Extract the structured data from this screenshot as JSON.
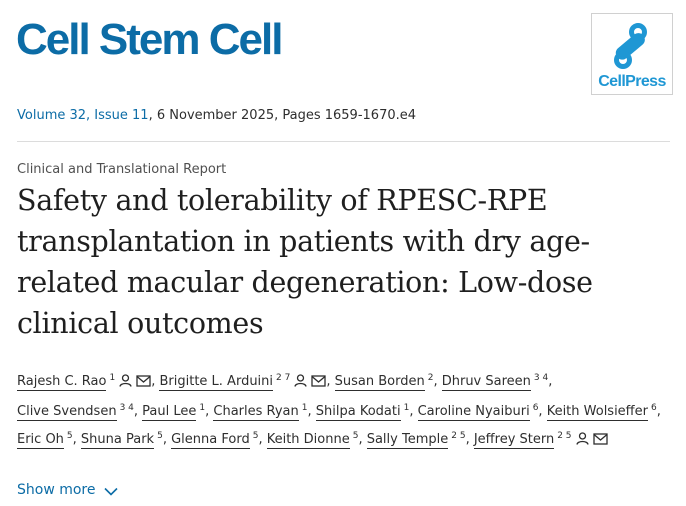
{
  "header": {
    "journal_title": "Cell Stem Cell",
    "publisher_logo_text": "CellPress"
  },
  "citation": {
    "volume_issue": "Volume 32, Issue 11",
    "date_pages": ", 6 November 2025, Pages 1659-1670.e4"
  },
  "article": {
    "type": "Clinical and Translational Report",
    "title": "Safety and tolerability of RPESC-RPE transplantation in patients with dry age-related macular degeneration: Low-dose clinical outcomes"
  },
  "authors": [
    {
      "name": "Rajesh C. Rao",
      "aff": "1",
      "icons": [
        "person-icon",
        "mail-icon"
      ]
    },
    {
      "name": "Brigitte L. Arduini",
      "aff": "2 7",
      "icons": [
        "person-icon",
        "mail-icon"
      ]
    },
    {
      "name": "Susan Borden",
      "aff": "2",
      "icons": []
    },
    {
      "name": "Dhruv Sareen",
      "aff": "3 4",
      "icons": []
    },
    {
      "name": "Clive Svendsen",
      "aff": "3 4",
      "icons": []
    },
    {
      "name": "Paul Lee",
      "aff": "1",
      "icons": []
    },
    {
      "name": "Charles Ryan",
      "aff": "1",
      "icons": []
    },
    {
      "name": "Shilpa Kodati",
      "aff": "1",
      "icons": []
    },
    {
      "name": "Caroline Nyaiburi",
      "aff": "6",
      "icons": []
    },
    {
      "name": "Keith Wolsieffer",
      "aff": "6",
      "icons": []
    },
    {
      "name": "Eric Oh",
      "aff": "5",
      "icons": []
    },
    {
      "name": "Shuna Park",
      "aff": "5",
      "icons": []
    },
    {
      "name": "Glenna Ford",
      "aff": "5",
      "icons": []
    },
    {
      "name": "Keith Dionne",
      "aff": "5",
      "icons": []
    },
    {
      "name": "Sally Temple",
      "aff": "2 5",
      "icons": []
    },
    {
      "name": "Jeffrey Stern",
      "aff": "2 5",
      "icons": [
        "person-icon",
        "mail-icon"
      ]
    }
  ],
  "actions": {
    "show_more_label": "Show more",
    "show_more_icon": "chevron-down-icon"
  },
  "colors": {
    "brand_blue": "#0c6ca6",
    "cellpress_blue": "#1f97d4"
  }
}
